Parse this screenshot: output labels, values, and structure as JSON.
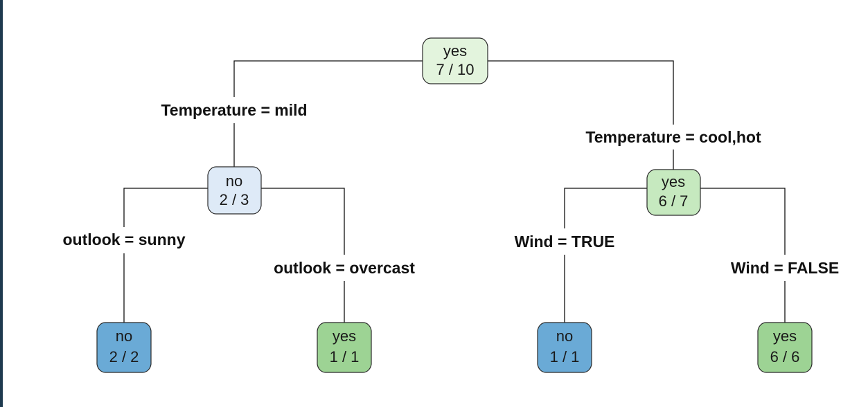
{
  "colors": {
    "no_strong": "#6aaad6",
    "no_light": "#deeaf7",
    "yes_strong": "#9dd394",
    "yes_mid": "#c6e9bf",
    "yes_light": "#e3f4dd"
  },
  "nodes": {
    "root": {
      "class": "yes",
      "counts": "7 / 10",
      "color": "yes_light"
    },
    "mild": {
      "class": "no",
      "counts": "2 / 3",
      "color": "no_light"
    },
    "coolhot": {
      "class": "yes",
      "counts": "6 / 7",
      "color": "yes_mid"
    },
    "sunny": {
      "class": "no",
      "counts": "2 / 2",
      "color": "no_strong"
    },
    "overcast": {
      "class": "yes",
      "counts": "1 / 1",
      "color": "yes_strong"
    },
    "windtrue": {
      "class": "no",
      "counts": "1 / 1",
      "color": "no_strong"
    },
    "windfalse": {
      "class": "yes",
      "counts": "6 / 6",
      "color": "yes_strong"
    }
  },
  "splits": {
    "mild": "Temperature = mild",
    "coolhot": "Temperature = cool,hot",
    "sunny": "outlook = sunny",
    "overcast": "outlook = overcast",
    "windtrue": "Wind = TRUE",
    "windfalse": "Wind = FALSE"
  }
}
